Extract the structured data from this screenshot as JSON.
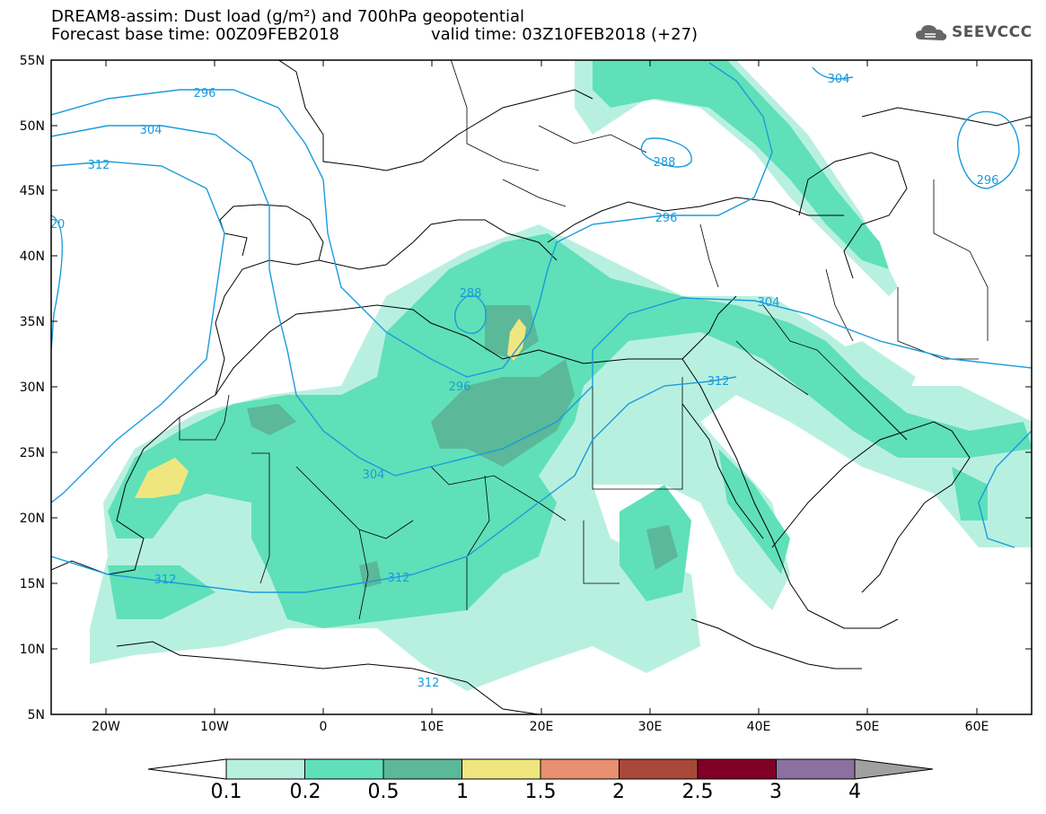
{
  "header": {
    "line1": "DREAM8-assim: Dust load (g/m²) and 700hPa geopotential",
    "line2_left": "Forecast base time: 00Z09FEB2018",
    "line2_right": "valid time: 03Z10FEB2018 (+27)",
    "logo_text": "SEEVCCC",
    "logo_icon": "cloud-icon"
  },
  "map": {
    "lat_labels": [
      "55N",
      "50N",
      "45N",
      "40N",
      "35N",
      "30N",
      "25N",
      "20N",
      "15N",
      "10N",
      "5N"
    ],
    "lon_labels": [
      "20W",
      "10W",
      "0",
      "10E",
      "20E",
      "30E",
      "40E",
      "50E",
      "60E"
    ],
    "contour_labels": [
      "296",
      "304",
      "312",
      "20",
      "288",
      "296",
      "304",
      "312",
      "312",
      "312",
      "304",
      "288",
      "296",
      "304",
      "296",
      "312"
    ]
  },
  "colorbar": {
    "labels": [
      "0.1",
      "0.2",
      "0.5",
      "1",
      "1.5",
      "2",
      "2.5",
      "3",
      "4"
    ],
    "colors": [
      "#ffffff",
      "#b8f0e0",
      "#5fe0b8",
      "#5bb898",
      "#f0e680",
      "#e89070",
      "#a84838",
      "#800028",
      "#8c70a0",
      "#a0a0a0"
    ]
  }
}
